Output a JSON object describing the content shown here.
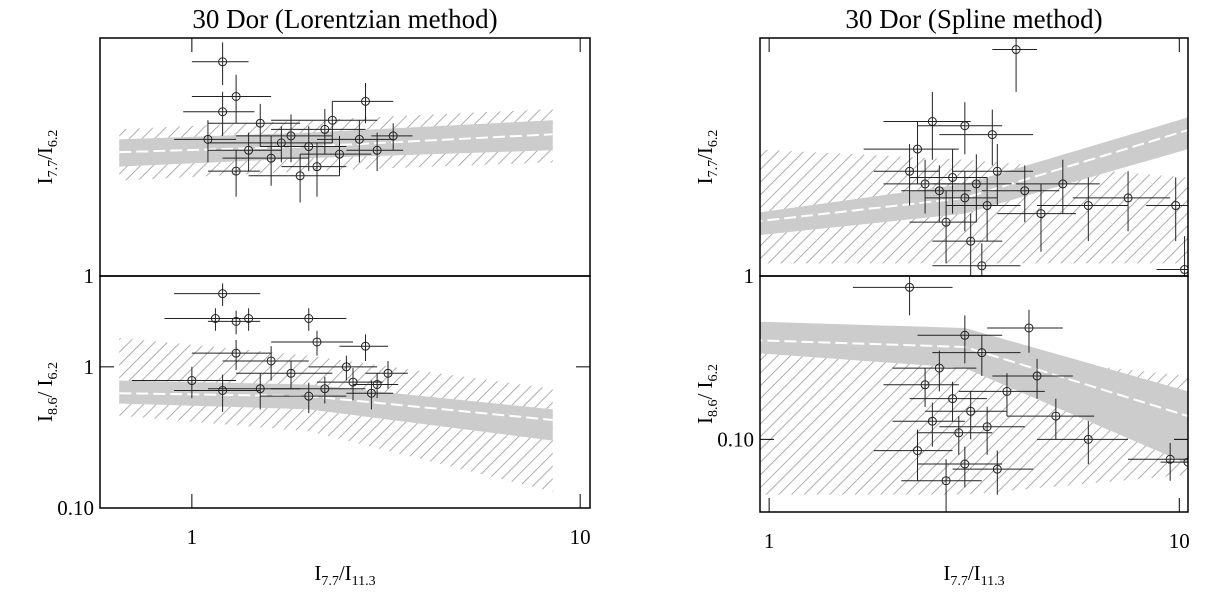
{
  "chart_data": [
    {
      "type": "scatter",
      "title": "30 Dor (Lorentzian method)",
      "ylabel": [
        {
          "text": "I"
        },
        {
          "text": "7.7",
          "sub": true
        },
        {
          "text": "/I"
        },
        {
          "text": "6.2",
          "sub": true
        }
      ],
      "log_x": true,
      "log_y": true,
      "xlim": [
        0.58,
        10.6
      ],
      "ylim": [
        1,
        8
      ],
      "yticks": [
        1
      ],
      "points": {
        "x": [
          1.2,
          1.3,
          1.2,
          1.5,
          1.1,
          1.4,
          1.6,
          1.8,
          2.0,
          2.2,
          2.4,
          2.1,
          2.7,
          3.0,
          3.3,
          2.8,
          1.9,
          1.3,
          2.3,
          1.7
        ],
        "y": [
          6.5,
          4.8,
          4.2,
          3.8,
          3.3,
          3.0,
          2.8,
          3.4,
          3.1,
          3.6,
          2.9,
          2.6,
          3.3,
          3.0,
          3.4,
          4.6,
          2.4,
          2.5,
          3.9,
          3.2
        ],
        "xerr": [
          0.2,
          0.3,
          0.25,
          0.4,
          0.2,
          0.3,
          0.4,
          0.5,
          0.5,
          0.6,
          0.5,
          0.4,
          0.6,
          0.5,
          0.4,
          0.5,
          0.5,
          0.2,
          0.7,
          0.6
        ],
        "yerr": [
          1.2,
          1.0,
          0.8,
          0.7,
          0.6,
          0.5,
          0.6,
          0.7,
          0.6,
          0.7,
          0.5,
          0.6,
          0.6,
          0.5,
          0.4,
          0.8,
          0.5,
          0.5,
          0.7,
          0.5
        ]
      },
      "model": {
        "x": [
          0.65,
          2,
          8.5
        ],
        "band_lower": [
          2.6,
          2.8,
          3.0
        ],
        "band_upper": [
          3.3,
          3.5,
          3.9
        ],
        "hatch_lower": [
          2.3,
          2.5,
          2.7
        ],
        "hatch_upper": [
          3.6,
          3.9,
          4.3
        ],
        "curve": [
          2.95,
          3.1,
          3.45
        ]
      }
    },
    {
      "type": "scatter",
      "ylabel": [
        {
          "text": "I"
        },
        {
          "text": "8.6",
          "sub": true
        },
        {
          "text": "/ I"
        },
        {
          "text": "6.2",
          "sub": true
        }
      ],
      "xlabel": [
        {
          "text": "I"
        },
        {
          "text": "7.7",
          "sub": true
        },
        {
          "text": "/I"
        },
        {
          "text": "11.3",
          "sub": true
        }
      ],
      "log_x": true,
      "log_y": true,
      "xlim": [
        0.58,
        10.6
      ],
      "ylim": [
        0.1,
        4.4
      ],
      "xticks": [
        1,
        10
      ],
      "yticks": [
        {
          "value": 0.1,
          "label": "0.10"
        },
        1
      ],
      "points": {
        "x": [
          1.2,
          1.15,
          1.3,
          1.4,
          2.0,
          1.3,
          1.6,
          1.0,
          1.8,
          2.1,
          2.5,
          2.8,
          3.2,
          2.9,
          2.2,
          1.5,
          1.2,
          2.6,
          3.0,
          2.0
        ],
        "y": [
          3.3,
          2.2,
          2.1,
          2.2,
          2.2,
          1.25,
          1.1,
          0.8,
          0.9,
          1.5,
          1.0,
          1.4,
          0.9,
          0.65,
          0.7,
          0.7,
          0.68,
          0.78,
          0.75,
          0.62
        ],
        "xerr": [
          0.3,
          0.3,
          0.2,
          0.4,
          0.5,
          0.3,
          0.4,
          0.3,
          0.5,
          0.5,
          0.5,
          0.4,
          0.4,
          0.4,
          0.6,
          0.4,
          0.3,
          0.5,
          0.4,
          0.5
        ],
        "yerr": [
          0.6,
          0.4,
          0.4,
          0.4,
          0.4,
          0.3,
          0.3,
          0.2,
          0.2,
          0.3,
          0.2,
          0.3,
          0.2,
          0.15,
          0.15,
          0.2,
          0.2,
          0.2,
          0.15,
          0.15
        ]
      },
      "model": {
        "x": [
          0.65,
          2,
          8.5
        ],
        "band_lower": [
          0.55,
          0.5,
          0.3
        ],
        "band_upper": [
          0.8,
          0.75,
          0.5
        ],
        "hatch_lower": [
          0.45,
          0.35,
          0.13
        ],
        "hatch_upper": [
          1.6,
          1.2,
          0.7
        ],
        "curve": [
          0.65,
          0.62,
          0.42
        ]
      }
    },
    {
      "type": "scatter",
      "title": "30 Dor (Spline method)",
      "ylabel": [
        {
          "text": "I"
        },
        {
          "text": "7.7",
          "sub": true
        },
        {
          "text": "/I"
        },
        {
          "text": "6.2",
          "sub": true
        }
      ],
      "log_x": true,
      "log_y": true,
      "xlim": [
        0.95,
        10.5
      ],
      "ylim": [
        1,
        6
      ],
      "yticks": [
        1
      ],
      "points": {
        "x": [
          2.5,
          3.0,
          3.5,
          2.2,
          2.4,
          2.6,
          2.8,
          3.0,
          3.2,
          3.4,
          2.7,
          3.1,
          3.6,
          4.2,
          4.6,
          5.2,
          6.0,
          7.5,
          9.8,
          10.3,
          3.3,
          2.3,
          4.0
        ],
        "y": [
          3.2,
          3.1,
          2.9,
          2.2,
          2.0,
          1.9,
          2.1,
          1.8,
          2.0,
          1.7,
          1.5,
          1.3,
          2.2,
          1.9,
          1.6,
          2.0,
          1.7,
          1.8,
          1.7,
          1.05,
          1.08,
          2.6,
          5.5
        ],
        "xerr": [
          0.6,
          0.7,
          0.9,
          0.4,
          0.5,
          0.5,
          0.6,
          0.6,
          0.7,
          0.7,
          0.5,
          0.6,
          0.8,
          0.9,
          1.0,
          1.2,
          1.5,
          2,
          1.5,
          1.5,
          0.8,
          0.6,
          0.5
        ],
        "yerr": [
          0.8,
          0.6,
          0.6,
          0.5,
          0.4,
          0.4,
          0.5,
          0.4,
          0.5,
          0.4,
          0.4,
          0.3,
          0.5,
          0.4,
          0.4,
          0.4,
          0.4,
          0.4,
          0.4,
          0.3,
          0.2,
          0.6,
          1.5
        ]
      },
      "model": {
        "x": [
          0.9,
          3,
          10.5
        ],
        "band_lower": [
          1.35,
          1.6,
          2.6
        ],
        "band_upper": [
          1.6,
          2.0,
          3.3
        ],
        "hatch_lower": [
          1.1,
          1.1,
          1.1
        ],
        "hatch_upper": [
          2.6,
          2.4,
          2.1
        ],
        "curve": [
          1.5,
          1.8,
          3.0
        ]
      }
    },
    {
      "type": "scatter",
      "ylabel": [
        {
          "text": "I"
        },
        {
          "text": "8.6",
          "sub": true
        },
        {
          "text": "/ I"
        },
        {
          "text": "6.2",
          "sub": true
        }
      ],
      "xlabel": [
        {
          "text": "I"
        },
        {
          "text": "7.7",
          "sub": true
        },
        {
          "text": "/I"
        },
        {
          "text": "11.3",
          "sub": true
        }
      ],
      "log_x": true,
      "log_y": true,
      "xlim": [
        0.95,
        10.5
      ],
      "ylim": [
        0.035,
        1.06
      ],
      "xticks": [
        1,
        10
      ],
      "yticks": [
        {
          "value": 0.1,
          "label": "0.10"
        }
      ],
      "points": {
        "x": [
          3.0,
          3.3,
          2.6,
          2.4,
          2.8,
          3.1,
          2.5,
          2.9,
          3.4,
          3.8,
          4.5,
          2.3,
          3.0,
          3.6,
          2.7,
          5.0,
          6.0,
          9.5,
          10.5,
          4.3,
          2.2
        ],
        "y": [
          0.45,
          0.35,
          0.28,
          0.22,
          0.18,
          0.15,
          0.13,
          0.11,
          0.12,
          0.2,
          0.25,
          0.085,
          0.07,
          0.065,
          0.055,
          0.14,
          0.1,
          0.075,
          0.072,
          0.5,
          0.9
        ],
        "xerr": [
          0.7,
          0.8,
          0.6,
          0.5,
          0.6,
          0.7,
          0.5,
          0.6,
          0.8,
          0.9,
          1,
          0.5,
          0.7,
          0.8,
          0.6,
          1.2,
          1.5,
          2,
          1.5,
          0.9,
          0.6
        ],
        "yerr": [
          0.15,
          0.1,
          0.08,
          0.06,
          0.05,
          0.05,
          0.04,
          0.03,
          0.04,
          0.06,
          0.07,
          0.03,
          0.02,
          0.02,
          0.02,
          0.04,
          0.03,
          0.02,
          0.02,
          0.15,
          0.3
        ]
      },
      "model": {
        "x": [
          0.9,
          3,
          10.5
        ],
        "band_lower": [
          0.35,
          0.28,
          0.07
        ],
        "band_upper": [
          0.55,
          0.5,
          0.2
        ],
        "hatch_lower": [
          0.045,
          0.045,
          0.06
        ],
        "hatch_upper": [
          0.4,
          0.35,
          0.25
        ],
        "curve": [
          0.42,
          0.38,
          0.14
        ]
      }
    }
  ]
}
